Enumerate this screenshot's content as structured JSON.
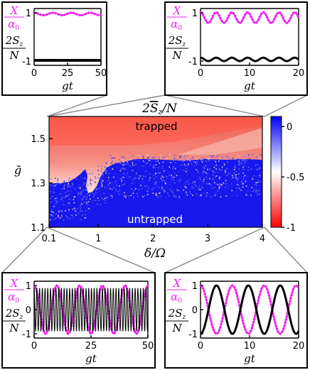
{
  "chart_data": [
    {
      "type": "line",
      "panel": "top-left",
      "x_range": [
        0,
        50
      ],
      "y_range": [
        -1,
        1
      ],
      "x_ticks": [
        "0",
        "25",
        "50"
      ],
      "y_ticks": [
        "1",
        "-1"
      ],
      "xlabel": "gt",
      "series": [
        {
          "label": "X/α0",
          "color": "#ee22ee",
          "style": "dotted",
          "mean": 0.95,
          "amplitude": 0.05,
          "period": 14
        },
        {
          "label": "2Sz/N",
          "color": "#000000",
          "style": "solid",
          "mean": -0.97,
          "amplitude": 0.015,
          "period": 1
        }
      ]
    },
    {
      "type": "line",
      "panel": "top-right",
      "x_range": [
        0,
        20
      ],
      "y_range": [
        -1,
        1
      ],
      "x_ticks": [
        "0",
        "10",
        "20"
      ],
      "y_ticks": [
        "1",
        "-1"
      ],
      "xlabel": "gt",
      "series": [
        {
          "label": "X/α0",
          "color": "#ee22ee",
          "style": "dotted",
          "mean": 0.8,
          "amplitude": 0.22,
          "period": 3.2
        },
        {
          "label": "2Sz/N",
          "color": "#000000",
          "style": "solid",
          "mean": -0.93,
          "amplitude": 0.07,
          "period": 3.2
        }
      ]
    },
    {
      "type": "heatmap",
      "panel": "center",
      "title": "2S̄z/N",
      "xlabel": "δ/Ω",
      "ylabel": "g̃",
      "x_ticks": [
        "0.1",
        "1",
        "2",
        "3",
        "4"
      ],
      "y_ticks": [
        "1.1",
        "1.3",
        "1.5"
      ],
      "x_range": [
        0.1,
        4
      ],
      "y_range": [
        1.1,
        1.6
      ],
      "colorbar": {
        "ticks": [
          "0",
          "-0.5",
          "-1"
        ],
        "range": [
          -1,
          0.1
        ],
        "colors": [
          "#ff0000",
          "#ffffff",
          "#0000ff"
        ]
      },
      "annotations": [
        "trapped",
        "untrapped"
      ]
    },
    {
      "type": "line",
      "panel": "bottom-left",
      "x_range": [
        0,
        50
      ],
      "y_range": [
        -1,
        1
      ],
      "x_ticks": [
        "0",
        "25",
        "50"
      ],
      "y_ticks": [
        "1",
        "0",
        "-1"
      ],
      "xlabel": "gt",
      "series": [
        {
          "label": "X/α0",
          "color": "#ee22ee",
          "style": "dotted",
          "mean": 0,
          "amplitude": 1,
          "period": 10
        },
        {
          "label": "2Sz/N",
          "color": "#000000",
          "style": "solid",
          "mean": 0,
          "amplitude": 0.9,
          "period": 1.2
        }
      ]
    },
    {
      "type": "line",
      "panel": "bottom-right",
      "x_range": [
        0,
        20
      ],
      "y_range": [
        -1,
        1
      ],
      "x_ticks": [
        "0",
        "10",
        "20"
      ],
      "y_ticks": [
        "1",
        "0",
        "-1"
      ],
      "xlabel": "gt",
      "series": [
        {
          "label": "X/α0",
          "color": "#ee22ee",
          "style": "dotted",
          "mean": 0,
          "amplitude": 1,
          "period": 6.5
        },
        {
          "label": "2Sz/N",
          "color": "#000000",
          "style": "solid",
          "mean": 0,
          "amplitude": 1,
          "period": 6.5,
          "phase": 3.1416
        }
      ]
    }
  ]
}
